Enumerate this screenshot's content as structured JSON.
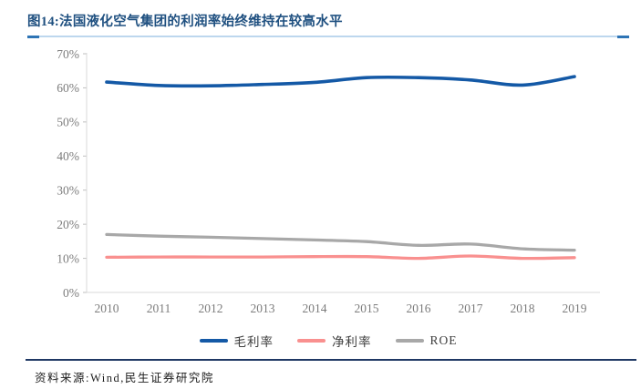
{
  "figure": {
    "title": "图14:法国液化空气集团的利润率始终维持在较高水平",
    "source": "资料来源:Wind,民生证券研究院"
  },
  "colors": {
    "title_blue": "#1F5080",
    "rule_light_blue": "#BDD7EE",
    "rule_dark_blue": "#2E74B5",
    "source_rule_navy": "#1F3864",
    "axis_line": "#D9D9D9",
    "tick_mark": "#BFBFBF",
    "axis_text": "#7C7C7C",
    "gross_margin_blue": "#1459A6",
    "net_margin_pink": "#F9908F",
    "roe_gray": "#A8A8A8"
  },
  "chart_data": {
    "type": "line",
    "categories": [
      "2010",
      "2011",
      "2012",
      "2013",
      "2014",
      "2015",
      "2016",
      "2017",
      "2018",
      "2019"
    ],
    "series": [
      {
        "id": "gross-margin",
        "name": "毛利率",
        "color": "#1459A6",
        "width": 3.6,
        "values": [
          61.7,
          60.7,
          60.6,
          61.0,
          61.6,
          63.0,
          63.0,
          62.3,
          60.8,
          63.3
        ]
      },
      {
        "id": "net-margin",
        "name": "净利率",
        "color": "#F9908F",
        "width": 3.3,
        "values": [
          10.3,
          10.4,
          10.4,
          10.4,
          10.5,
          10.5,
          10.0,
          10.7,
          10.0,
          10.2
        ]
      },
      {
        "id": "roe",
        "name": "ROE",
        "color": "#A8A8A8",
        "width": 3.3,
        "values": [
          17.0,
          16.5,
          16.2,
          15.8,
          15.4,
          14.9,
          13.8,
          14.2,
          12.8,
          12.4
        ]
      }
    ],
    "ylim": [
      0,
      70
    ],
    "ytick_step": 10,
    "ytick_suffix": "%",
    "xlabel": "",
    "ylabel": "",
    "grid": false,
    "legend_position": "bottom"
  }
}
